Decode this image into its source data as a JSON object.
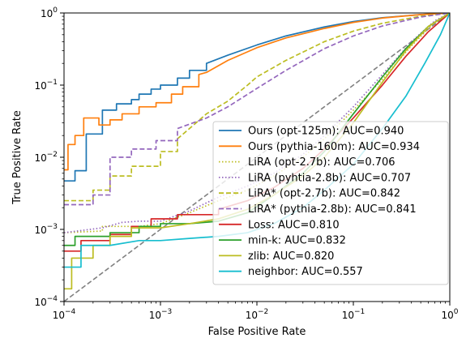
{
  "chart_data": {
    "type": "line",
    "xlabel": "False Positive Rate",
    "ylabel": "True Positive Rate",
    "x_scale": "log",
    "y_scale": "log",
    "xlim": [
      0.0001,
      1
    ],
    "ylim": [
      0.0001,
      1
    ],
    "x_ticks": [
      {
        "value": 0.0001,
        "base": "10",
        "exp": "−4"
      },
      {
        "value": 0.001,
        "base": "10",
        "exp": "−3"
      },
      {
        "value": 0.01,
        "base": "10",
        "exp": "−2"
      },
      {
        "value": 0.1,
        "base": "10",
        "exp": "−1"
      },
      {
        "value": 1,
        "base": "10",
        "exp": "0"
      }
    ],
    "y_ticks": [
      {
        "value": 0.0001,
        "base": "10",
        "exp": "−4"
      },
      {
        "value": 0.001,
        "base": "10",
        "exp": "−3"
      },
      {
        "value": 0.01,
        "base": "10",
        "exp": "−2"
      },
      {
        "value": 0.1,
        "base": "10",
        "exp": "−1"
      },
      {
        "value": 1,
        "base": "10",
        "exp": "0"
      }
    ],
    "grid": false,
    "legend_position": "lower-right",
    "diagonal": {
      "color": "#808080",
      "style": "dashed"
    },
    "series": [
      {
        "name": "Ours (opt-125m): AUC=0.940",
        "color": "#1f77b4",
        "style": "solid",
        "points": [
          [
            0.0001,
            0.0047
          ],
          [
            0.00013,
            0.0047
          ],
          [
            0.00013,
            0.0065
          ],
          [
            0.00017,
            0.0065
          ],
          [
            0.00017,
            0.021
          ],
          [
            0.00025,
            0.021
          ],
          [
            0.00025,
            0.045
          ],
          [
            0.00035,
            0.045
          ],
          [
            0.00035,
            0.055
          ],
          [
            0.0005,
            0.055
          ],
          [
            0.0005,
            0.063
          ],
          [
            0.0006,
            0.063
          ],
          [
            0.0006,
            0.075
          ],
          [
            0.0008,
            0.075
          ],
          [
            0.0008,
            0.088
          ],
          [
            0.001,
            0.088
          ],
          [
            0.001,
            0.1
          ],
          [
            0.0015,
            0.1
          ],
          [
            0.0015,
            0.125
          ],
          [
            0.002,
            0.125
          ],
          [
            0.002,
            0.16
          ],
          [
            0.003,
            0.16
          ],
          [
            0.003,
            0.2
          ],
          [
            0.005,
            0.26
          ],
          [
            0.01,
            0.36
          ],
          [
            0.02,
            0.48
          ],
          [
            0.05,
            0.64
          ],
          [
            0.1,
            0.76
          ],
          [
            0.2,
            0.86
          ],
          [
            0.5,
            0.95
          ],
          [
            1,
            1
          ]
        ]
      },
      {
        "name": "Ours (pythia-160m): AUC=0.934",
        "color": "#ff7f0e",
        "style": "solid",
        "points": [
          [
            0.0001,
            0.0067
          ],
          [
            0.00011,
            0.0067
          ],
          [
            0.00011,
            0.015
          ],
          [
            0.00013,
            0.015
          ],
          [
            0.00013,
            0.02
          ],
          [
            0.00016,
            0.02
          ],
          [
            0.00016,
            0.035
          ],
          [
            0.00023,
            0.035
          ],
          [
            0.00023,
            0.028
          ],
          [
            0.0003,
            0.028
          ],
          [
            0.0003,
            0.033
          ],
          [
            0.0004,
            0.033
          ],
          [
            0.0004,
            0.04
          ],
          [
            0.0006,
            0.04
          ],
          [
            0.0006,
            0.05
          ],
          [
            0.0009,
            0.05
          ],
          [
            0.0009,
            0.057
          ],
          [
            0.0013,
            0.057
          ],
          [
            0.0013,
            0.075
          ],
          [
            0.0017,
            0.075
          ],
          [
            0.0017,
            0.095
          ],
          [
            0.0025,
            0.095
          ],
          [
            0.0025,
            0.14
          ],
          [
            0.003,
            0.15
          ],
          [
            0.005,
            0.22
          ],
          [
            0.01,
            0.33
          ],
          [
            0.02,
            0.45
          ],
          [
            0.05,
            0.61
          ],
          [
            0.1,
            0.74
          ],
          [
            0.2,
            0.85
          ],
          [
            0.5,
            0.95
          ],
          [
            1,
            1
          ]
        ]
      },
      {
        "name": "LiRA (opt-2.7b): AUC=0.706",
        "color": "#bcbd22",
        "style": "dotted",
        "points": [
          [
            0.0001,
            0.0009
          ],
          [
            0.00025,
            0.00095
          ],
          [
            0.00025,
            0.0011
          ],
          [
            0.0006,
            0.0011
          ],
          [
            0.001,
            0.0012
          ],
          [
            0.002,
            0.0017
          ],
          [
            0.004,
            0.0025
          ],
          [
            0.008,
            0.0035
          ],
          [
            0.015,
            0.0055
          ],
          [
            0.03,
            0.01
          ],
          [
            0.05,
            0.018
          ],
          [
            0.1,
            0.045
          ],
          [
            0.2,
            0.12
          ],
          [
            0.4,
            0.35
          ],
          [
            0.7,
            0.75
          ],
          [
            1,
            1
          ]
        ]
      },
      {
        "name": "LiRA (pyhtia-2.8b): AUC=0.707",
        "color": "#9467bd",
        "style": "dotted",
        "points": [
          [
            0.0001,
            0.0009
          ],
          [
            0.00025,
            0.00105
          ],
          [
            0.0004,
            0.00125
          ],
          [
            0.0006,
            0.0013
          ],
          [
            0.001,
            0.0013
          ],
          [
            0.002,
            0.0018
          ],
          [
            0.004,
            0.0028
          ],
          [
            0.008,
            0.004
          ],
          [
            0.015,
            0.006
          ],
          [
            0.03,
            0.011
          ],
          [
            0.05,
            0.02
          ],
          [
            0.1,
            0.05
          ],
          [
            0.2,
            0.14
          ],
          [
            0.4,
            0.4
          ],
          [
            0.7,
            0.78
          ],
          [
            1,
            1
          ]
        ]
      },
      {
        "name": "LiRA* (opt-2.7b): AUC=0.842",
        "color": "#bcbd22",
        "style": "dashed",
        "points": [
          [
            0.0001,
            0.0025
          ],
          [
            0.0002,
            0.0025
          ],
          [
            0.0002,
            0.0035
          ],
          [
            0.0003,
            0.0035
          ],
          [
            0.0003,
            0.0055
          ],
          [
            0.0005,
            0.0055
          ],
          [
            0.0005,
            0.0075
          ],
          [
            0.001,
            0.0075
          ],
          [
            0.001,
            0.012
          ],
          [
            0.0015,
            0.012
          ],
          [
            0.0015,
            0.018
          ],
          [
            0.002,
            0.025
          ],
          [
            0.003,
            0.04
          ],
          [
            0.005,
            0.06
          ],
          [
            0.008,
            0.1
          ],
          [
            0.01,
            0.13
          ],
          [
            0.02,
            0.22
          ],
          [
            0.05,
            0.4
          ],
          [
            0.1,
            0.56
          ],
          [
            0.2,
            0.72
          ],
          [
            0.5,
            0.9
          ],
          [
            1,
            1
          ]
        ]
      },
      {
        "name": "LiRA* (pythia-2.8b): AUC=0.841",
        "color": "#9467bd",
        "style": "dashed",
        "points": [
          [
            0.0001,
            0.0022
          ],
          [
            0.0002,
            0.0022
          ],
          [
            0.0002,
            0.003
          ],
          [
            0.0003,
            0.003
          ],
          [
            0.0003,
            0.01
          ],
          [
            0.0005,
            0.01
          ],
          [
            0.0005,
            0.013
          ],
          [
            0.0009,
            0.013
          ],
          [
            0.0009,
            0.017
          ],
          [
            0.0015,
            0.017
          ],
          [
            0.0015,
            0.025
          ],
          [
            0.003,
            0.035
          ],
          [
            0.005,
            0.05
          ],
          [
            0.01,
            0.09
          ],
          [
            0.02,
            0.16
          ],
          [
            0.05,
            0.32
          ],
          [
            0.1,
            0.48
          ],
          [
            0.2,
            0.66
          ],
          [
            0.5,
            0.88
          ],
          [
            1,
            1
          ]
        ]
      },
      {
        "name": "Loss: AUC=0.810",
        "color": "#d62728",
        "style": "solid",
        "points": [
          [
            0.0001,
            0.0005
          ],
          [
            0.00015,
            0.0005
          ],
          [
            0.00015,
            0.0007
          ],
          [
            0.0003,
            0.0007
          ],
          [
            0.0003,
            0.00085
          ],
          [
            0.0005,
            0.00085
          ],
          [
            0.0005,
            0.0011
          ],
          [
            0.0008,
            0.0011
          ],
          [
            0.0008,
            0.0014
          ],
          [
            0.0015,
            0.0014
          ],
          [
            0.0015,
            0.0016
          ],
          [
            0.004,
            0.0016
          ],
          [
            0.004,
            0.0019
          ],
          [
            0.008,
            0.0025
          ],
          [
            0.015,
            0.0038
          ],
          [
            0.03,
            0.007
          ],
          [
            0.05,
            0.013
          ],
          [
            0.1,
            0.035
          ],
          [
            0.2,
            0.1
          ],
          [
            0.35,
            0.25
          ],
          [
            0.6,
            0.55
          ],
          [
            1,
            1
          ]
        ]
      },
      {
        "name": "min-k: AUC=0.832",
        "color": "#2ca02c",
        "style": "solid",
        "points": [
          [
            0.0001,
            0.0006
          ],
          [
            0.00013,
            0.0006
          ],
          [
            0.00013,
            0.0008
          ],
          [
            0.0003,
            0.0008
          ],
          [
            0.0003,
            0.0009
          ],
          [
            0.0006,
            0.0009
          ],
          [
            0.0006,
            0.0011
          ],
          [
            0.001,
            0.0011
          ],
          [
            0.001,
            0.0012
          ],
          [
            0.002,
            0.0012
          ],
          [
            0.004,
            0.0013
          ],
          [
            0.008,
            0.0017
          ],
          [
            0.015,
            0.003
          ],
          [
            0.03,
            0.006
          ],
          [
            0.05,
            0.012
          ],
          [
            0.1,
            0.04
          ],
          [
            0.2,
            0.13
          ],
          [
            0.35,
            0.32
          ],
          [
            0.6,
            0.65
          ],
          [
            1,
            1
          ]
        ]
      },
      {
        "name": "zlib: AUC=0.820",
        "color": "#bcbd22",
        "style": "solid",
        "points": [
          [
            0.0001,
            0.00015
          ],
          [
            0.00012,
            0.00015
          ],
          [
            0.00012,
            0.0004
          ],
          [
            0.0002,
            0.0004
          ],
          [
            0.0002,
            0.0006
          ],
          [
            0.0003,
            0.0006
          ],
          [
            0.0003,
            0.0008
          ],
          [
            0.0005,
            0.0008
          ],
          [
            0.0005,
            0.00105
          ],
          [
            0.001,
            0.00105
          ],
          [
            0.002,
            0.0012
          ],
          [
            0.004,
            0.0014
          ],
          [
            0.008,
            0.0019
          ],
          [
            0.015,
            0.003
          ],
          [
            0.03,
            0.0055
          ],
          [
            0.05,
            0.01
          ],
          [
            0.1,
            0.03
          ],
          [
            0.2,
            0.11
          ],
          [
            0.35,
            0.3
          ],
          [
            0.6,
            0.65
          ],
          [
            1,
            1
          ]
        ]
      },
      {
        "name": "neighbor: AUC=0.557",
        "color": "#17becf",
        "style": "solid",
        "points": [
          [
            0.0001,
            0.0003
          ],
          [
            0.00015,
            0.0003
          ],
          [
            0.00015,
            0.0006
          ],
          [
            0.0003,
            0.0006
          ],
          [
            0.0006,
            0.0007
          ],
          [
            0.001,
            0.0007
          ],
          [
            0.002,
            0.00075
          ],
          [
            0.004,
            0.0008
          ],
          [
            0.008,
            0.0009
          ],
          [
            0.015,
            0.0012
          ],
          [
            0.03,
            0.002
          ],
          [
            0.05,
            0.0035
          ],
          [
            0.1,
            0.008
          ],
          [
            0.2,
            0.025
          ],
          [
            0.35,
            0.07
          ],
          [
            0.55,
            0.2
          ],
          [
            0.8,
            0.5
          ],
          [
            1,
            1
          ]
        ]
      }
    ]
  }
}
